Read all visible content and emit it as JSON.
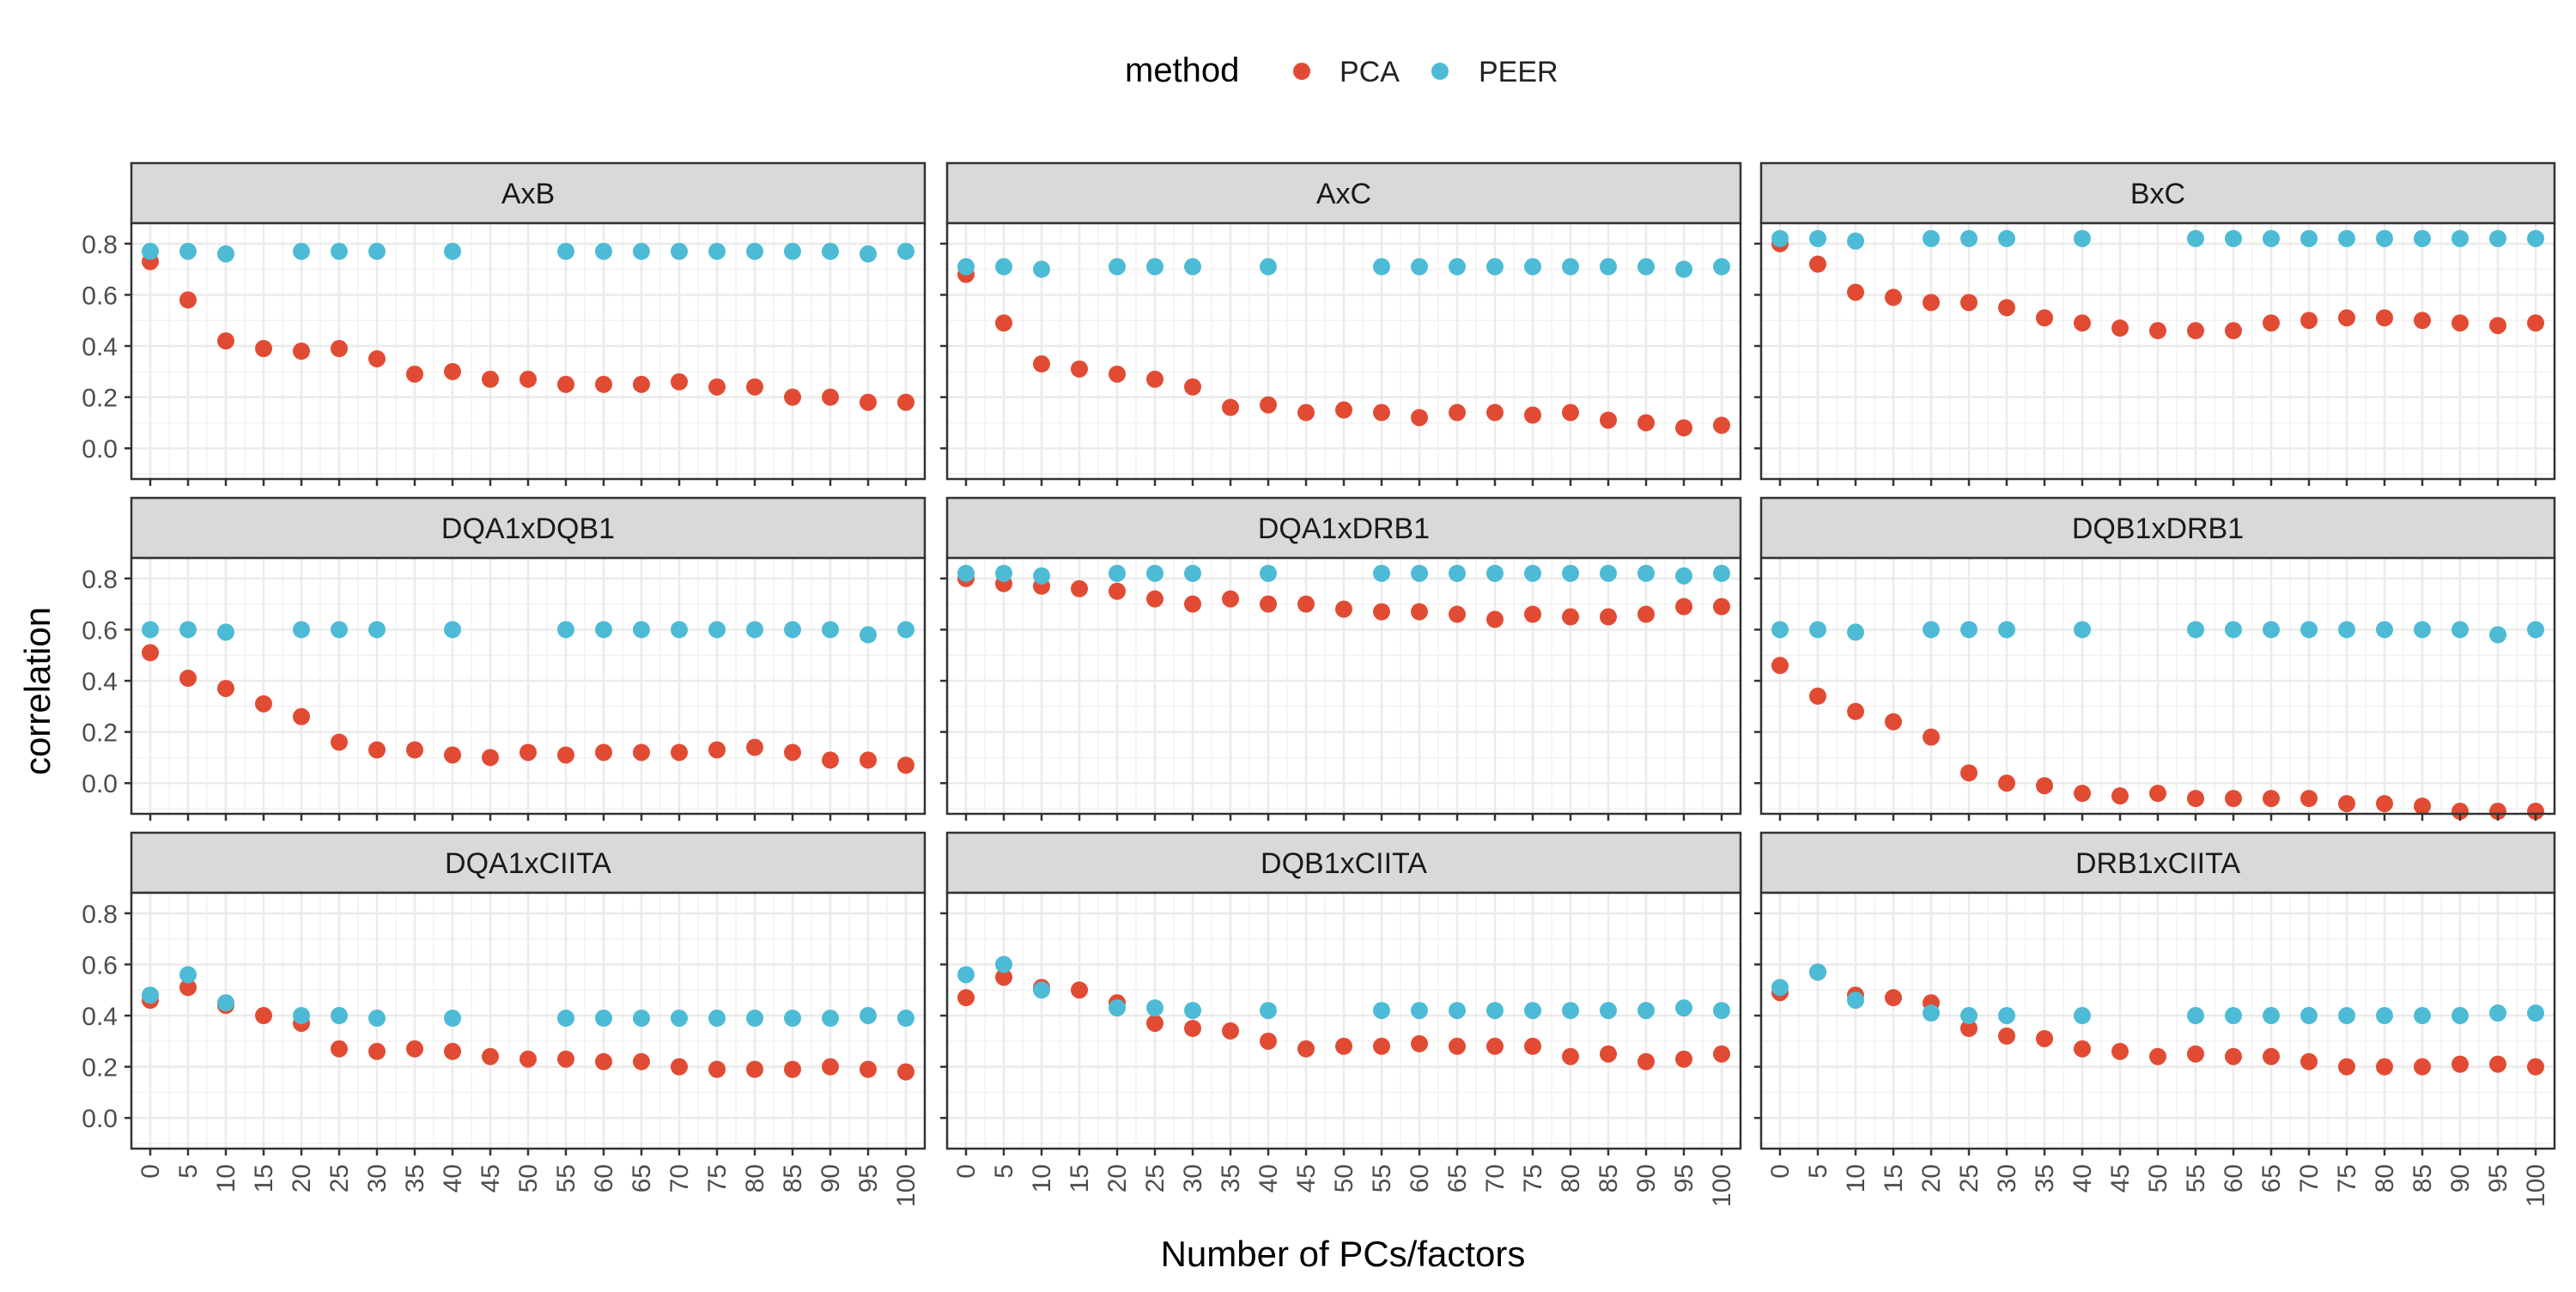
{
  "chart_data": {
    "type": "scatter",
    "xlabel": "Number of PCs/factors",
    "ylabel": "correlation",
    "legend": {
      "title": "method",
      "position": "top"
    },
    "series_colors": {
      "PCA": "#E24B33",
      "PEER": "#4DBBD5"
    },
    "x_ticks": [
      0,
      5,
      10,
      15,
      20,
      25,
      30,
      35,
      40,
      45,
      50,
      55,
      60,
      65,
      70,
      75,
      80,
      85,
      90,
      95,
      100
    ],
    "y_ticks": [
      0.0,
      0.2,
      0.4,
      0.6,
      0.8
    ],
    "xlim": [
      -2.5,
      102.5
    ],
    "ylim": [
      -0.12,
      0.88
    ],
    "grid": true,
    "facets": [
      {
        "title": "AxB",
        "series": [
          {
            "name": "PCA",
            "x": [
              0,
              5,
              10,
              15,
              20,
              25,
              30,
              35,
              40,
              45,
              50,
              55,
              60,
              65,
              70,
              75,
              80,
              85,
              90,
              95,
              100
            ],
            "y": [
              0.73,
              0.58,
              0.42,
              0.39,
              0.38,
              0.39,
              0.35,
              0.29,
              0.3,
              0.27,
              0.27,
              0.25,
              0.25,
              0.25,
              0.26,
              0.24,
              0.24,
              0.2,
              0.2,
              0.18,
              0.18
            ]
          },
          {
            "name": "PEER",
            "x": [
              0,
              5,
              10,
              20,
              25,
              30,
              40,
              55,
              60,
              65,
              70,
              75,
              80,
              85,
              90,
              95,
              100
            ],
            "y": [
              0.77,
              0.77,
              0.76,
              0.77,
              0.77,
              0.77,
              0.77,
              0.77,
              0.77,
              0.77,
              0.77,
              0.77,
              0.77,
              0.77,
              0.77,
              0.76,
              0.77
            ]
          }
        ]
      },
      {
        "title": "AxC",
        "series": [
          {
            "name": "PCA",
            "x": [
              0,
              5,
              10,
              15,
              20,
              25,
              30,
              35,
              40,
              45,
              50,
              55,
              60,
              65,
              70,
              75,
              80,
              85,
              90,
              95,
              100
            ],
            "y": [
              0.68,
              0.49,
              0.33,
              0.31,
              0.29,
              0.27,
              0.24,
              0.16,
              0.17,
              0.14,
              0.15,
              0.14,
              0.12,
              0.14,
              0.14,
              0.13,
              0.14,
              0.11,
              0.1,
              0.08,
              0.09
            ]
          },
          {
            "name": "PEER",
            "x": [
              0,
              5,
              10,
              20,
              25,
              30,
              40,
              55,
              60,
              65,
              70,
              75,
              80,
              85,
              90,
              95,
              100
            ],
            "y": [
              0.71,
              0.71,
              0.7,
              0.71,
              0.71,
              0.71,
              0.71,
              0.71,
              0.71,
              0.71,
              0.71,
              0.71,
              0.71,
              0.71,
              0.71,
              0.7,
              0.71
            ]
          }
        ]
      },
      {
        "title": "BxC",
        "series": [
          {
            "name": "PCA",
            "x": [
              0,
              5,
              10,
              15,
              20,
              25,
              30,
              35,
              40,
              45,
              50,
              55,
              60,
              65,
              70,
              75,
              80,
              85,
              90,
              95,
              100
            ],
            "y": [
              0.8,
              0.72,
              0.61,
              0.59,
              0.57,
              0.57,
              0.55,
              0.51,
              0.49,
              0.47,
              0.46,
              0.46,
              0.46,
              0.49,
              0.5,
              0.51,
              0.51,
              0.5,
              0.49,
              0.48,
              0.49
            ]
          },
          {
            "name": "PEER",
            "x": [
              0,
              5,
              10,
              20,
              25,
              30,
              40,
              55,
              60,
              65,
              70,
              75,
              80,
              85,
              90,
              95,
              100
            ],
            "y": [
              0.82,
              0.82,
              0.81,
              0.82,
              0.82,
              0.82,
              0.82,
              0.82,
              0.82,
              0.82,
              0.82,
              0.82,
              0.82,
              0.82,
              0.82,
              0.82,
              0.82
            ]
          }
        ]
      },
      {
        "title": "DQA1xDQB1",
        "series": [
          {
            "name": "PCA",
            "x": [
              0,
              5,
              10,
              15,
              20,
              25,
              30,
              35,
              40,
              45,
              50,
              55,
              60,
              65,
              70,
              75,
              80,
              85,
              90,
              95,
              100
            ],
            "y": [
              0.51,
              0.41,
              0.37,
              0.31,
              0.26,
              0.16,
              0.13,
              0.13,
              0.11,
              0.1,
              0.12,
              0.11,
              0.12,
              0.12,
              0.12,
              0.13,
              0.14,
              0.12,
              0.09,
              0.09,
              0.07
            ]
          },
          {
            "name": "PEER",
            "x": [
              0,
              5,
              10,
              20,
              25,
              30,
              40,
              55,
              60,
              65,
              70,
              75,
              80,
              85,
              90,
              95,
              100
            ],
            "y": [
              0.6,
              0.6,
              0.59,
              0.6,
              0.6,
              0.6,
              0.6,
              0.6,
              0.6,
              0.6,
              0.6,
              0.6,
              0.6,
              0.6,
              0.6,
              0.58,
              0.6
            ]
          }
        ]
      },
      {
        "title": "DQA1xDRB1",
        "series": [
          {
            "name": "PCA",
            "x": [
              0,
              5,
              10,
              15,
              20,
              25,
              30,
              35,
              40,
              45,
              50,
              55,
              60,
              65,
              70,
              75,
              80,
              85,
              90,
              95,
              100
            ],
            "y": [
              0.8,
              0.78,
              0.77,
              0.76,
              0.75,
              0.72,
              0.7,
              0.72,
              0.7,
              0.7,
              0.68,
              0.67,
              0.67,
              0.66,
              0.64,
              0.66,
              0.65,
              0.65,
              0.66,
              0.69,
              0.69
            ]
          },
          {
            "name": "PEER",
            "x": [
              0,
              5,
              10,
              20,
              25,
              30,
              40,
              55,
              60,
              65,
              70,
              75,
              80,
              85,
              90,
              95,
              100
            ],
            "y": [
              0.82,
              0.82,
              0.81,
              0.82,
              0.82,
              0.82,
              0.82,
              0.82,
              0.82,
              0.82,
              0.82,
              0.82,
              0.82,
              0.82,
              0.82,
              0.81,
              0.82
            ]
          }
        ]
      },
      {
        "title": "DQB1xDRB1",
        "series": [
          {
            "name": "PCA",
            "x": [
              0,
              5,
              10,
              15,
              20,
              25,
              30,
              35,
              40,
              45,
              50,
              55,
              60,
              65,
              70,
              75,
              80,
              85,
              90,
              95,
              100
            ],
            "y": [
              0.46,
              0.34,
              0.28,
              0.24,
              0.18,
              0.04,
              0.0,
              -0.01,
              -0.04,
              -0.05,
              -0.04,
              -0.06,
              -0.06,
              -0.06,
              -0.06,
              -0.08,
              -0.08,
              -0.09,
              -0.11,
              -0.11,
              -0.11
            ]
          },
          {
            "name": "PEER",
            "x": [
              0,
              5,
              10,
              20,
              25,
              30,
              40,
              55,
              60,
              65,
              70,
              75,
              80,
              85,
              90,
              95,
              100
            ],
            "y": [
              0.6,
              0.6,
              0.59,
              0.6,
              0.6,
              0.6,
              0.6,
              0.6,
              0.6,
              0.6,
              0.6,
              0.6,
              0.6,
              0.6,
              0.6,
              0.58,
              0.6
            ]
          }
        ]
      },
      {
        "title": "DQA1xCIITA",
        "series": [
          {
            "name": "PCA",
            "x": [
              0,
              5,
              10,
              15,
              20,
              25,
              30,
              35,
              40,
              45,
              50,
              55,
              60,
              65,
              70,
              75,
              80,
              85,
              90,
              95,
              100
            ],
            "y": [
              0.46,
              0.51,
              0.44,
              0.4,
              0.37,
              0.27,
              0.26,
              0.27,
              0.26,
              0.24,
              0.23,
              0.23,
              0.22,
              0.22,
              0.2,
              0.19,
              0.19,
              0.19,
              0.2,
              0.19,
              0.18
            ]
          },
          {
            "name": "PEER",
            "x": [
              0,
              5,
              10,
              20,
              25,
              30,
              40,
              55,
              60,
              65,
              70,
              75,
              80,
              85,
              90,
              95,
              100
            ],
            "y": [
              0.48,
              0.56,
              0.45,
              0.4,
              0.4,
              0.39,
              0.39,
              0.39,
              0.39,
              0.39,
              0.39,
              0.39,
              0.39,
              0.39,
              0.39,
              0.4,
              0.39
            ]
          }
        ]
      },
      {
        "title": "DQB1xCIITA",
        "series": [
          {
            "name": "PCA",
            "x": [
              0,
              5,
              10,
              15,
              20,
              25,
              30,
              35,
              40,
              45,
              50,
              55,
              60,
              65,
              70,
              75,
              80,
              85,
              90,
              95,
              100
            ],
            "y": [
              0.47,
              0.55,
              0.51,
              0.5,
              0.45,
              0.37,
              0.35,
              0.34,
              0.3,
              0.27,
              0.28,
              0.28,
              0.29,
              0.28,
              0.28,
              0.28,
              0.24,
              0.25,
              0.22,
              0.23,
              0.25
            ]
          },
          {
            "name": "PEER",
            "x": [
              0,
              5,
              10,
              20,
              25,
              30,
              40,
              55,
              60,
              65,
              70,
              75,
              80,
              85,
              90,
              95,
              100
            ],
            "y": [
              0.56,
              0.6,
              0.5,
              0.43,
              0.43,
              0.42,
              0.42,
              0.42,
              0.42,
              0.42,
              0.42,
              0.42,
              0.42,
              0.42,
              0.42,
              0.43,
              0.42
            ]
          }
        ]
      },
      {
        "title": "DRB1xCIITA",
        "series": [
          {
            "name": "PCA",
            "x": [
              0,
              5,
              10,
              15,
              20,
              25,
              30,
              35,
              40,
              45,
              50,
              55,
              60,
              65,
              70,
              75,
              80,
              85,
              90,
              95,
              100
            ],
            "y": [
              0.49,
              0.57,
              0.48,
              0.47,
              0.45,
              0.35,
              0.32,
              0.31,
              0.27,
              0.26,
              0.24,
              0.25,
              0.24,
              0.24,
              0.22,
              0.2,
              0.2,
              0.2,
              0.21,
              0.21,
              0.2
            ]
          },
          {
            "name": "PEER",
            "x": [
              0,
              5,
              10,
              20,
              25,
              30,
              40,
              55,
              60,
              65,
              70,
              75,
              80,
              85,
              90,
              95,
              100
            ],
            "y": [
              0.51,
              0.57,
              0.46,
              0.41,
              0.4,
              0.4,
              0.4,
              0.4,
              0.4,
              0.4,
              0.4,
              0.4,
              0.4,
              0.4,
              0.4,
              0.41,
              0.41
            ]
          }
        ]
      }
    ]
  }
}
